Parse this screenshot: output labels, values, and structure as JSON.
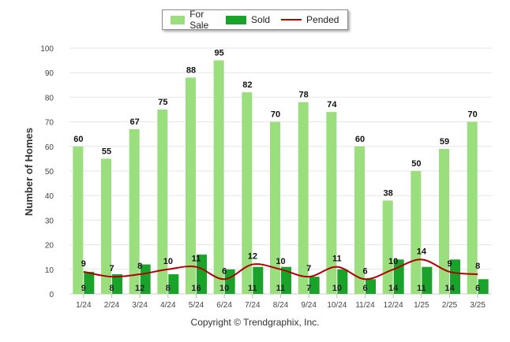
{
  "chart_data": {
    "type": "bar",
    "categories": [
      "1/24",
      "2/24",
      "3/24",
      "4/24",
      "5/24",
      "6/24",
      "7/24",
      "8/24",
      "9/24",
      "10/24",
      "11/24",
      "12/24",
      "1/25",
      "2/25",
      "3/25"
    ],
    "series": [
      {
        "name": "For Sale",
        "type": "bar",
        "color": "#9bde7e",
        "values": [
          60,
          55,
          67,
          75,
          88,
          95,
          82,
          70,
          78,
          74,
          60,
          38,
          50,
          59,
          70
        ]
      },
      {
        "name": "Sold",
        "type": "bar",
        "color": "#1aa32a",
        "values": [
          9,
          8,
          12,
          8,
          16,
          10,
          11,
          11,
          7,
          10,
          6,
          14,
          11,
          14,
          6
        ]
      },
      {
        "name": "Pended",
        "type": "line",
        "color": "#b00000",
        "values": [
          9,
          7,
          8,
          10,
          11,
          6,
          12,
          10,
          7,
          11,
          6,
          10,
          14,
          9,
          8
        ]
      }
    ],
    "ylabel": "Number of Homes",
    "xlabel": "",
    "ylim": [
      0,
      100
    ],
    "yticks": [
      0,
      10,
      20,
      30,
      40,
      50,
      60,
      70,
      80,
      90,
      100
    ],
    "grid": true,
    "legend_position": "top-center"
  },
  "footer": {
    "copyright": "Copyright © Trendgraphix, Inc."
  }
}
